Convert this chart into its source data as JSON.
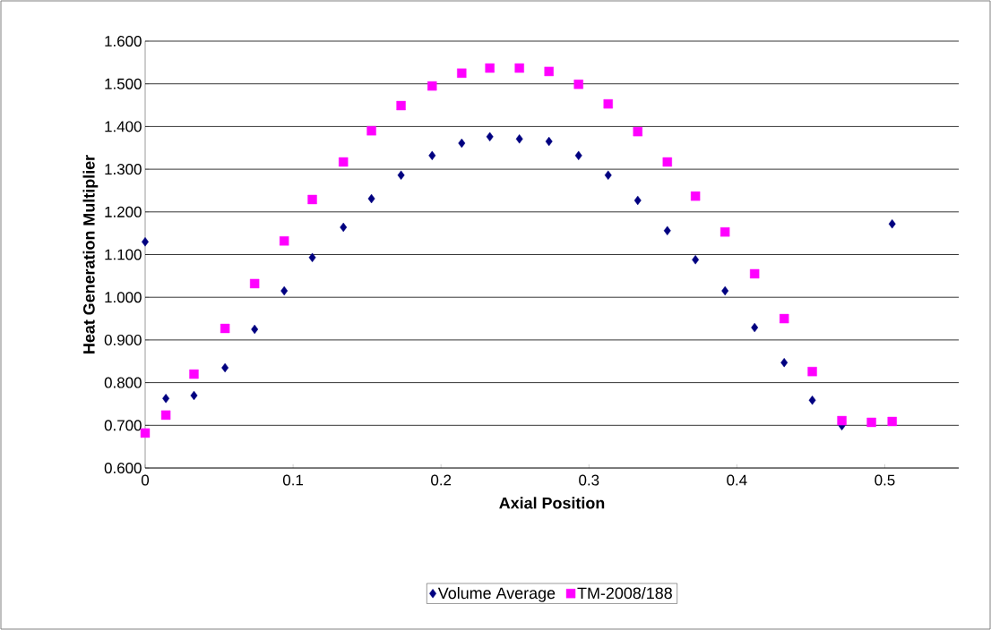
{
  "chart_data": {
    "type": "scatter",
    "xlabel": "Axial Position",
    "ylabel": "Heat Generation Multiplier",
    "x": [
      0,
      0.014,
      0.033,
      0.054,
      0.074,
      0.094,
      0.113,
      0.134,
      0.153,
      0.173,
      0.194,
      0.214,
      0.233,
      0.253,
      0.273,
      0.293,
      0.313,
      0.333,
      0.353,
      0.372,
      0.392,
      0.412,
      0.432,
      0.451,
      0.471,
      0.491,
      0.505
    ],
    "series": [
      {
        "name": "Volume Average",
        "color": "#000080",
        "marker": "diamond",
        "values": [
          1.13,
          0.763,
          0.77,
          0.835,
          0.925,
          1.015,
          1.093,
          1.164,
          1.231,
          1.286,
          1.332,
          1.361,
          1.376,
          1.371,
          1.365,
          1.332,
          1.286,
          1.227,
          1.156,
          1.088,
          1.015,
          0.929,
          0.847,
          0.759,
          0.699,
          null,
          1.172
        ]
      },
      {
        "name": "TM-2008/188",
        "color": "#ff00ff",
        "marker": "square",
        "values": [
          0.682,
          0.724,
          0.82,
          0.927,
          1.032,
          1.132,
          1.229,
          1.317,
          1.39,
          1.449,
          1.495,
          1.525,
          1.537,
          1.537,
          1.529,
          1.499,
          1.453,
          1.388,
          1.317,
          1.237,
          1.153,
          1.055,
          0.95,
          0.826,
          0.711,
          0.707,
          0.709
        ]
      }
    ],
    "xlim": [
      0,
      0.55
    ],
    "xticks": [
      0,
      0.1,
      0.2,
      0.3,
      0.4,
      0.5
    ],
    "ylim": [
      0.6,
      1.6
    ],
    "yticks": [
      {
        "value": 0.6,
        "label": "0.600"
      },
      {
        "value": 0.7,
        "label": "0.700"
      },
      {
        "value": 0.8,
        "label": "0.800"
      },
      {
        "value": 0.9,
        "label": "0.900"
      },
      {
        "value": 1.0,
        "label": "1.000"
      },
      {
        "value": 1.1,
        "label": "1.100"
      },
      {
        "value": 1.2,
        "label": "1.200"
      },
      {
        "value": 1.3,
        "label": "1.300"
      },
      {
        "value": 1.4,
        "label": "1.400"
      },
      {
        "value": 1.5,
        "label": "1.500"
      },
      {
        "value": 1.6,
        "label": "1.600"
      }
    ],
    "grid": "y",
    "legend": "bottom"
  }
}
